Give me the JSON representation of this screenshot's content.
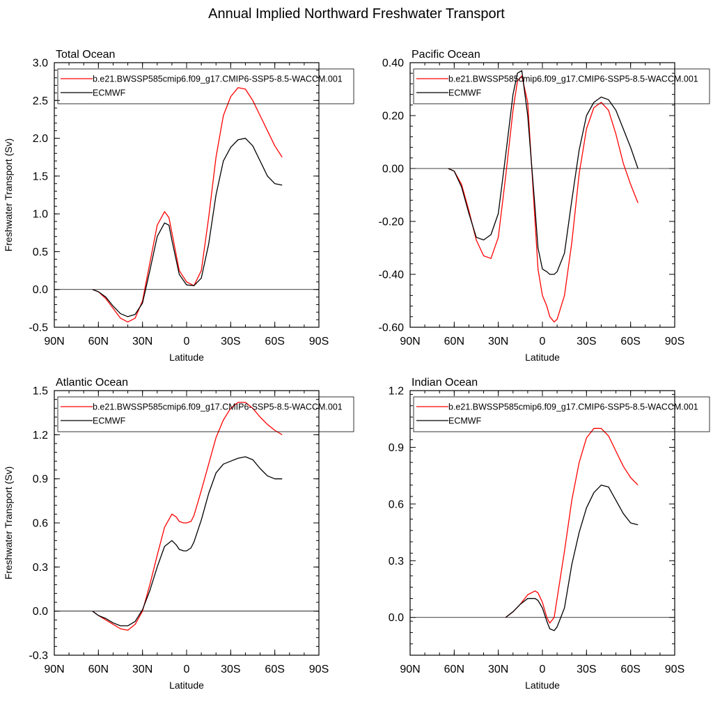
{
  "figure": {
    "title": "Annual Implied Northward Freshwater Transport"
  },
  "colors": {
    "model": "#ff0000",
    "obs": "#000000"
  },
  "legend_labels": [
    "b.e21.BWSSP585cmip6.f09_g17.CMIP6-SSP5-8.5-WACCM.001",
    "ECMWF"
  ],
  "chart_data": [
    {
      "type": "line",
      "title": "Total Ocean",
      "xlabel": "Latitude",
      "ylabel": "Freshwater Transport (Sv)",
      "xlim": [
        90,
        -90
      ],
      "ylim": [
        -0.5,
        3.0
      ],
      "xticks": [
        90,
        60,
        30,
        0,
        -30,
        -60,
        -90
      ],
      "xtick_labels": [
        "90N",
        "60N",
        "30N",
        "0",
        "30S",
        "60S",
        "90S"
      ],
      "yticks": [
        -0.5,
        0.0,
        0.5,
        1.0,
        1.5,
        2.0,
        2.5,
        3.0
      ],
      "ytick_labels": [
        "-0.5",
        "0.0",
        "0.5",
        "1.0",
        "1.5",
        "2.0",
        "2.5",
        "3.0"
      ],
      "zero_line": true,
      "legend": "top",
      "series": [
        {
          "name": "b.e21.BWSSP585cmip6.f09_g17.CMIP6-SSP5-8.5-WACCM.001",
          "x": [
            64,
            60,
            55,
            50,
            45,
            40,
            35,
            30,
            25,
            20,
            15,
            12,
            10,
            5,
            0,
            -5,
            -10,
            -15,
            -20,
            -25,
            -30,
            -35,
            -40,
            -45,
            -50,
            -55,
            -60,
            -65
          ],
          "y": [
            0,
            -0.03,
            -0.12,
            -0.25,
            -0.38,
            -0.43,
            -0.38,
            -0.15,
            0.35,
            0.85,
            1.03,
            0.95,
            0.75,
            0.25,
            0.1,
            0.05,
            0.25,
            0.95,
            1.75,
            2.3,
            2.55,
            2.67,
            2.65,
            2.5,
            2.3,
            2.1,
            1.9,
            1.75
          ]
        },
        {
          "name": "ECMWF",
          "x": [
            64,
            60,
            55,
            50,
            45,
            40,
            35,
            30,
            25,
            20,
            15,
            12,
            10,
            5,
            0,
            -5,
            -10,
            -15,
            -20,
            -25,
            -30,
            -35,
            -40,
            -45,
            -50,
            -55,
            -60,
            -65
          ],
          "y": [
            0,
            -0.03,
            -0.1,
            -0.22,
            -0.32,
            -0.36,
            -0.33,
            -0.18,
            0.25,
            0.7,
            0.88,
            0.85,
            0.65,
            0.2,
            0.06,
            0.05,
            0.15,
            0.6,
            1.25,
            1.7,
            1.88,
            1.98,
            2.0,
            1.9,
            1.7,
            1.5,
            1.4,
            1.38
          ]
        }
      ]
    },
    {
      "type": "line",
      "title": "Pacific Ocean",
      "xlabel": "Latitude",
      "ylabel": "",
      "xlim": [
        90,
        -90
      ],
      "ylim": [
        -0.6,
        0.4
      ],
      "xticks": [
        90,
        60,
        30,
        0,
        -30,
        -60,
        -90
      ],
      "xtick_labels": [
        "90N",
        "60N",
        "30N",
        "0",
        "30S",
        "60S",
        "90S"
      ],
      "yticks": [
        -0.6,
        -0.4,
        -0.2,
        0.0,
        0.2,
        0.4
      ],
      "ytick_labels": [
        "-0.60",
        "-0.40",
        "-0.20",
        "0.00",
        "0.20",
        "0.40"
      ],
      "zero_line": true,
      "legend": "top",
      "series": [
        {
          "name": "b.e21.BWSSP585cmip6.f09_g17.CMIP6-SSP5-8.5-WACCM.001",
          "x": [
            64,
            60,
            55,
            50,
            45,
            40,
            35,
            30,
            25,
            20,
            17,
            14,
            10,
            5,
            3,
            0,
            -3,
            -5,
            -8,
            -10,
            -15,
            -20,
            -25,
            -30,
            -35,
            -40,
            -45,
            -50,
            -55,
            -60,
            -65
          ],
          "y": [
            0,
            -0.01,
            -0.06,
            -0.16,
            -0.27,
            -0.33,
            -0.34,
            -0.26,
            -0.03,
            0.22,
            0.33,
            0.35,
            0.25,
            -0.2,
            -0.38,
            -0.48,
            -0.52,
            -0.56,
            -0.58,
            -0.57,
            -0.48,
            -0.28,
            -0.02,
            0.15,
            0.23,
            0.25,
            0.22,
            0.13,
            0.02,
            -0.06,
            -0.13
          ]
        },
        {
          "name": "ECMWF",
          "x": [
            64,
            60,
            55,
            50,
            45,
            40,
            35,
            30,
            25,
            20,
            17,
            14,
            10,
            5,
            3,
            0,
            -3,
            -5,
            -8,
            -10,
            -15,
            -20,
            -25,
            -30,
            -35,
            -40,
            -45,
            -50,
            -55,
            -60,
            -65
          ],
          "y": [
            0,
            -0.01,
            -0.07,
            -0.17,
            -0.26,
            -0.27,
            -0.25,
            -0.17,
            0.05,
            0.28,
            0.36,
            0.37,
            0.2,
            -0.15,
            -0.3,
            -0.38,
            -0.39,
            -0.4,
            -0.4,
            -0.39,
            -0.32,
            -0.12,
            0.07,
            0.2,
            0.25,
            0.27,
            0.26,
            0.22,
            0.15,
            0.08,
            0.0
          ]
        }
      ]
    },
    {
      "type": "line",
      "title": "Atlantic Ocean",
      "xlabel": "Latitude",
      "ylabel": "Freshwater Transport (Sv)",
      "xlim": [
        90,
        -90
      ],
      "ylim": [
        -0.3,
        1.5
      ],
      "xticks": [
        90,
        60,
        30,
        0,
        -30,
        -60,
        -90
      ],
      "xtick_labels": [
        "90N",
        "60N",
        "30N",
        "0",
        "30S",
        "60S",
        "90S"
      ],
      "yticks": [
        -0.3,
        0.0,
        0.3,
        0.6,
        0.9,
        1.2,
        1.5
      ],
      "ytick_labels": [
        "-0.3",
        "0.0",
        "0.3",
        "0.6",
        "0.9",
        "1.2",
        "1.5"
      ],
      "zero_line": true,
      "legend": "top",
      "series": [
        {
          "name": "b.e21.BWSSP585cmip6.f09_g17.CMIP6-SSP5-8.5-WACCM.001",
          "x": [
            64,
            60,
            55,
            50,
            45,
            40,
            35,
            30,
            25,
            20,
            15,
            10,
            7,
            5,
            2,
            0,
            -3,
            -5,
            -10,
            -15,
            -20,
            -25,
            -30,
            -35,
            -40,
            -45,
            -50,
            -55,
            -60,
            -65
          ],
          "y": [
            0,
            -0.03,
            -0.06,
            -0.09,
            -0.12,
            -0.13,
            -0.09,
            0.0,
            0.18,
            0.38,
            0.57,
            0.66,
            0.64,
            0.61,
            0.6,
            0.6,
            0.61,
            0.65,
            0.82,
            1.0,
            1.18,
            1.3,
            1.38,
            1.42,
            1.42,
            1.38,
            1.32,
            1.27,
            1.23,
            1.2
          ]
        },
        {
          "name": "ECMWF",
          "x": [
            64,
            60,
            55,
            50,
            45,
            40,
            35,
            30,
            25,
            20,
            15,
            10,
            7,
            5,
            2,
            0,
            -3,
            -5,
            -10,
            -15,
            -20,
            -25,
            -30,
            -35,
            -40,
            -45,
            -50,
            -55,
            -60,
            -65
          ],
          "y": [
            0,
            -0.03,
            -0.05,
            -0.08,
            -0.1,
            -0.1,
            -0.07,
            0.01,
            0.14,
            0.3,
            0.44,
            0.48,
            0.45,
            0.42,
            0.41,
            0.41,
            0.43,
            0.47,
            0.62,
            0.8,
            0.94,
            1.0,
            1.02,
            1.04,
            1.05,
            1.03,
            0.97,
            0.92,
            0.9,
            0.9
          ]
        }
      ]
    },
    {
      "type": "line",
      "title": "Indian Ocean",
      "xlabel": "Latitude",
      "ylabel": "",
      "xlim": [
        90,
        -90
      ],
      "ylim": [
        -0.2,
        1.2
      ],
      "xticks": [
        90,
        60,
        30,
        0,
        -30,
        -60,
        -90
      ],
      "xtick_labels": [
        "90N",
        "60N",
        "30N",
        "0",
        "30S",
        "60S",
        "90S"
      ],
      "yticks": [
        0.0,
        0.3,
        0.6,
        0.9,
        1.2
      ],
      "ytick_labels": [
        "0.0",
        "0.3",
        "0.6",
        "0.9",
        "1.2"
      ],
      "zero_line": true,
      "legend": "top",
      "series": [
        {
          "name": "b.e21.BWSSP585cmip6.f09_g17.CMIP6-SSP5-8.5-WACCM.001",
          "x": [
            25,
            20,
            15,
            10,
            5,
            3,
            0,
            -3,
            -5,
            -8,
            -10,
            -15,
            -20,
            -25,
            -30,
            -35,
            -40,
            -45,
            -50,
            -55,
            -60,
            -65
          ],
          "y": [
            0,
            0.03,
            0.07,
            0.12,
            0.14,
            0.13,
            0.08,
            0.0,
            -0.03,
            0.0,
            0.1,
            0.35,
            0.62,
            0.82,
            0.95,
            1.0,
            1.0,
            0.96,
            0.88,
            0.8,
            0.74,
            0.7
          ]
        },
        {
          "name": "ECMWF",
          "x": [
            25,
            20,
            15,
            10,
            5,
            3,
            0,
            -3,
            -5,
            -8,
            -10,
            -15,
            -20,
            -25,
            -30,
            -35,
            -40,
            -45,
            -50,
            -55,
            -60,
            -65
          ],
          "y": [
            0,
            0.03,
            0.07,
            0.1,
            0.1,
            0.09,
            0.05,
            -0.02,
            -0.06,
            -0.07,
            -0.05,
            0.05,
            0.28,
            0.45,
            0.58,
            0.66,
            0.7,
            0.69,
            0.62,
            0.55,
            0.5,
            0.49
          ]
        }
      ]
    }
  ]
}
